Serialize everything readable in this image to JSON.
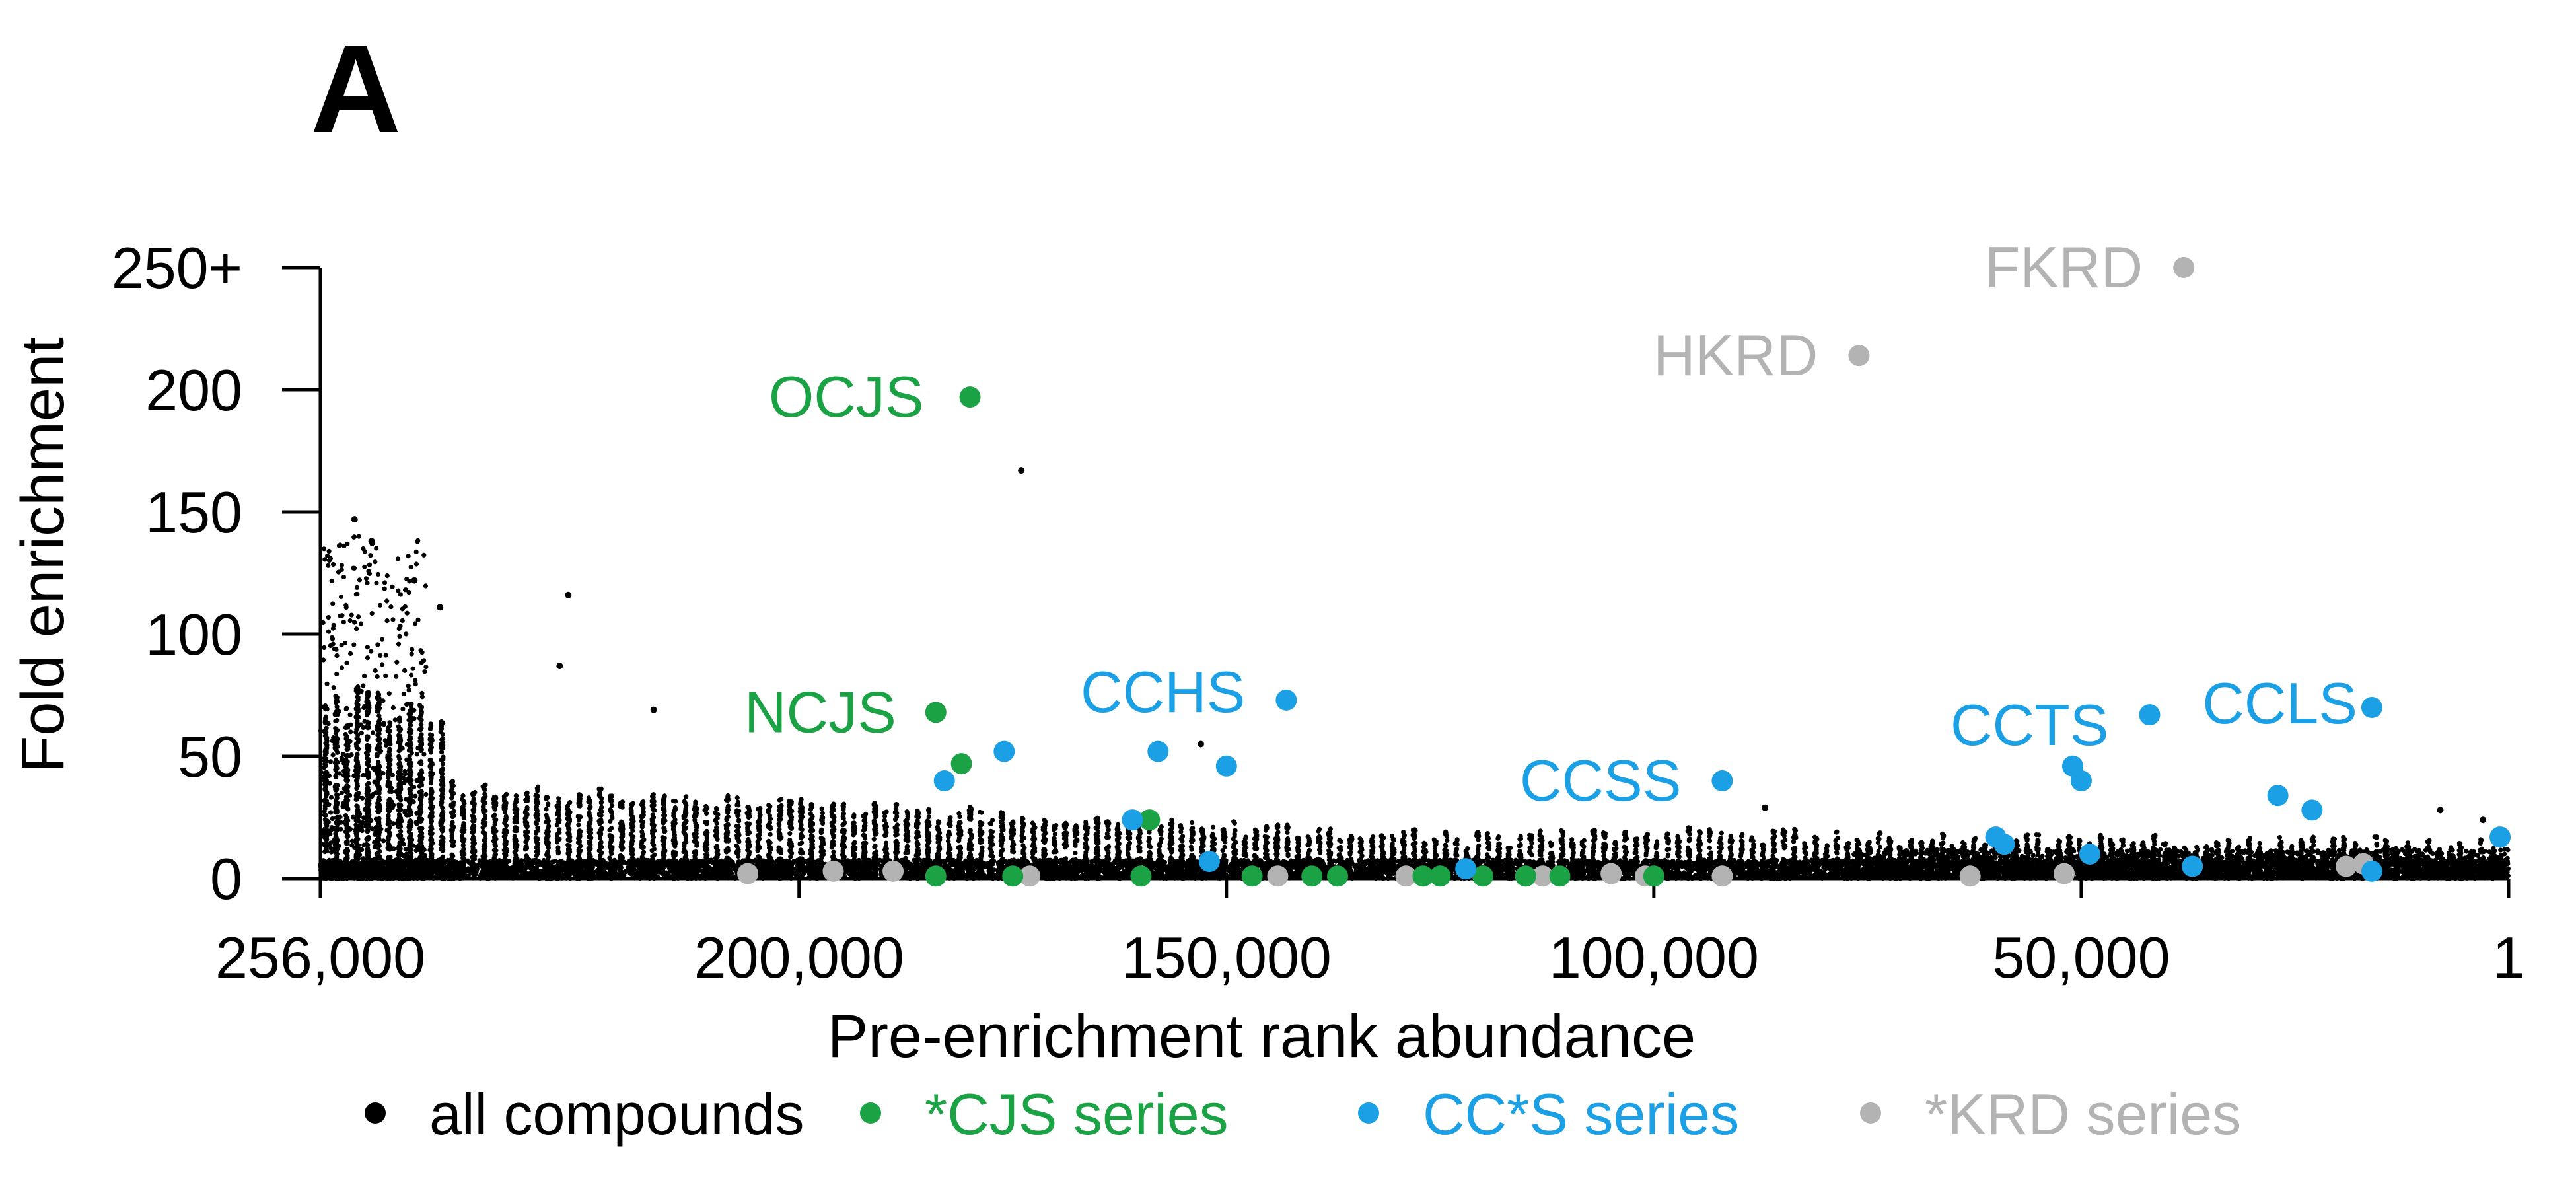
{
  "panel_label": "A",
  "colors": {
    "all": "#000000",
    "cjs": "#1aa245",
    "ccs": "#1ba0e6",
    "krd": "#b3b3b3"
  },
  "chart_data": {
    "type": "scatter",
    "xlabel": "Pre-enrichment rank abundance",
    "ylabel": "Fold enrichment",
    "x_reversed": true,
    "xlim": [
      256000,
      1
    ],
    "ylim": [
      0,
      250
    ],
    "x_ticks": [
      256000,
      200000,
      150000,
      100000,
      50000,
      1
    ],
    "x_tick_labels": [
      "256,000",
      "200,000",
      "150,000",
      "100,000",
      "50,000",
      "1"
    ],
    "y_ticks": [
      0,
      50,
      100,
      150,
      200,
      250
    ],
    "y_tick_labels": [
      "0",
      "50",
      "100",
      "150",
      "200",
      "250+"
    ],
    "legend": {
      "placement": "bottom",
      "entries": [
        "all compounds",
        "*CJS series",
        "CC*S series",
        "*KRD series"
      ]
    },
    "series": [
      {
        "name": "all compounds",
        "color": "#000000",
        "description_points": "dense cloud; selected notable outliers listed",
        "points": [
          [
            174000,
            167
          ],
          [
            227000,
            116
          ],
          [
            228000,
            87
          ],
          [
            217000,
            69
          ],
          [
            252000,
            147
          ],
          [
            250000,
            138
          ],
          [
            245000,
            122
          ],
          [
            242000,
            111
          ],
          [
            153000,
            55
          ],
          [
            87000,
            29
          ],
          [
            8000,
            28
          ],
          [
            3000,
            24
          ]
        ]
      },
      {
        "name": "*CJS series",
        "color": "#1aa245",
        "points": [
          {
            "x": 180000,
            "y": 197,
            "label": "OCJS"
          },
          {
            "x": 184000,
            "y": 68,
            "label": "NCJS"
          },
          {
            "x": 181000,
            "y": 47
          },
          {
            "x": 159000,
            "y": 24
          },
          {
            "x": 184000,
            "y": 1
          },
          {
            "x": 175000,
            "y": 1
          },
          {
            "x": 160000,
            "y": 1
          },
          {
            "x": 147000,
            "y": 1
          },
          {
            "x": 140000,
            "y": 1
          },
          {
            "x": 137000,
            "y": 1
          },
          {
            "x": 127000,
            "y": 1
          },
          {
            "x": 125000,
            "y": 1
          },
          {
            "x": 120000,
            "y": 1
          },
          {
            "x": 115000,
            "y": 1
          },
          {
            "x": 111000,
            "y": 1
          },
          {
            "x": 100000,
            "y": 1
          }
        ]
      },
      {
        "name": "CC*S series",
        "color": "#1ba0e6",
        "points": [
          {
            "x": 143000,
            "y": 73,
            "label": "CCHS"
          },
          {
            "x": 92000,
            "y": 40,
            "label": "CCSS"
          },
          {
            "x": 42000,
            "y": 67,
            "label": "CCTS"
          },
          {
            "x": 16000,
            "y": 70,
            "label": "CCLS"
          },
          {
            "x": 176000,
            "y": 52
          },
          {
            "x": 158000,
            "y": 52
          },
          {
            "x": 150000,
            "y": 46
          },
          {
            "x": 183000,
            "y": 40
          },
          {
            "x": 161000,
            "y": 24
          },
          {
            "x": 152000,
            "y": 7
          },
          {
            "x": 122000,
            "y": 4
          },
          {
            "x": 60000,
            "y": 17
          },
          {
            "x": 59000,
            "y": 14
          },
          {
            "x": 51000,
            "y": 46
          },
          {
            "x": 50000,
            "y": 40
          },
          {
            "x": 49000,
            "y": 10
          },
          {
            "x": 27000,
            "y": 34
          },
          {
            "x": 23000,
            "y": 28
          },
          {
            "x": 37000,
            "y": 5
          },
          {
            "x": 1000,
            "y": 17
          },
          {
            "x": 16000,
            "y": 3
          }
        ]
      },
      {
        "name": "*KRD series",
        "color": "#b3b3b3",
        "points": [
          {
            "x": 38000,
            "y": 250,
            "label": "FKRD"
          },
          {
            "x": 76000,
            "y": 214,
            "label": "HKRD"
          },
          {
            "x": 206000,
            "y": 2
          },
          {
            "x": 196000,
            "y": 3
          },
          {
            "x": 189000,
            "y": 3
          },
          {
            "x": 173000,
            "y": 1
          },
          {
            "x": 144000,
            "y": 1
          },
          {
            "x": 129000,
            "y": 1
          },
          {
            "x": 113000,
            "y": 1
          },
          {
            "x": 105000,
            "y": 2
          },
          {
            "x": 101000,
            "y": 1
          },
          {
            "x": 92000,
            "y": 1
          },
          {
            "x": 63000,
            "y": 1
          },
          {
            "x": 52000,
            "y": 2
          },
          {
            "x": 19000,
            "y": 5
          },
          {
            "x": 17000,
            "y": 6
          }
        ]
      }
    ]
  }
}
